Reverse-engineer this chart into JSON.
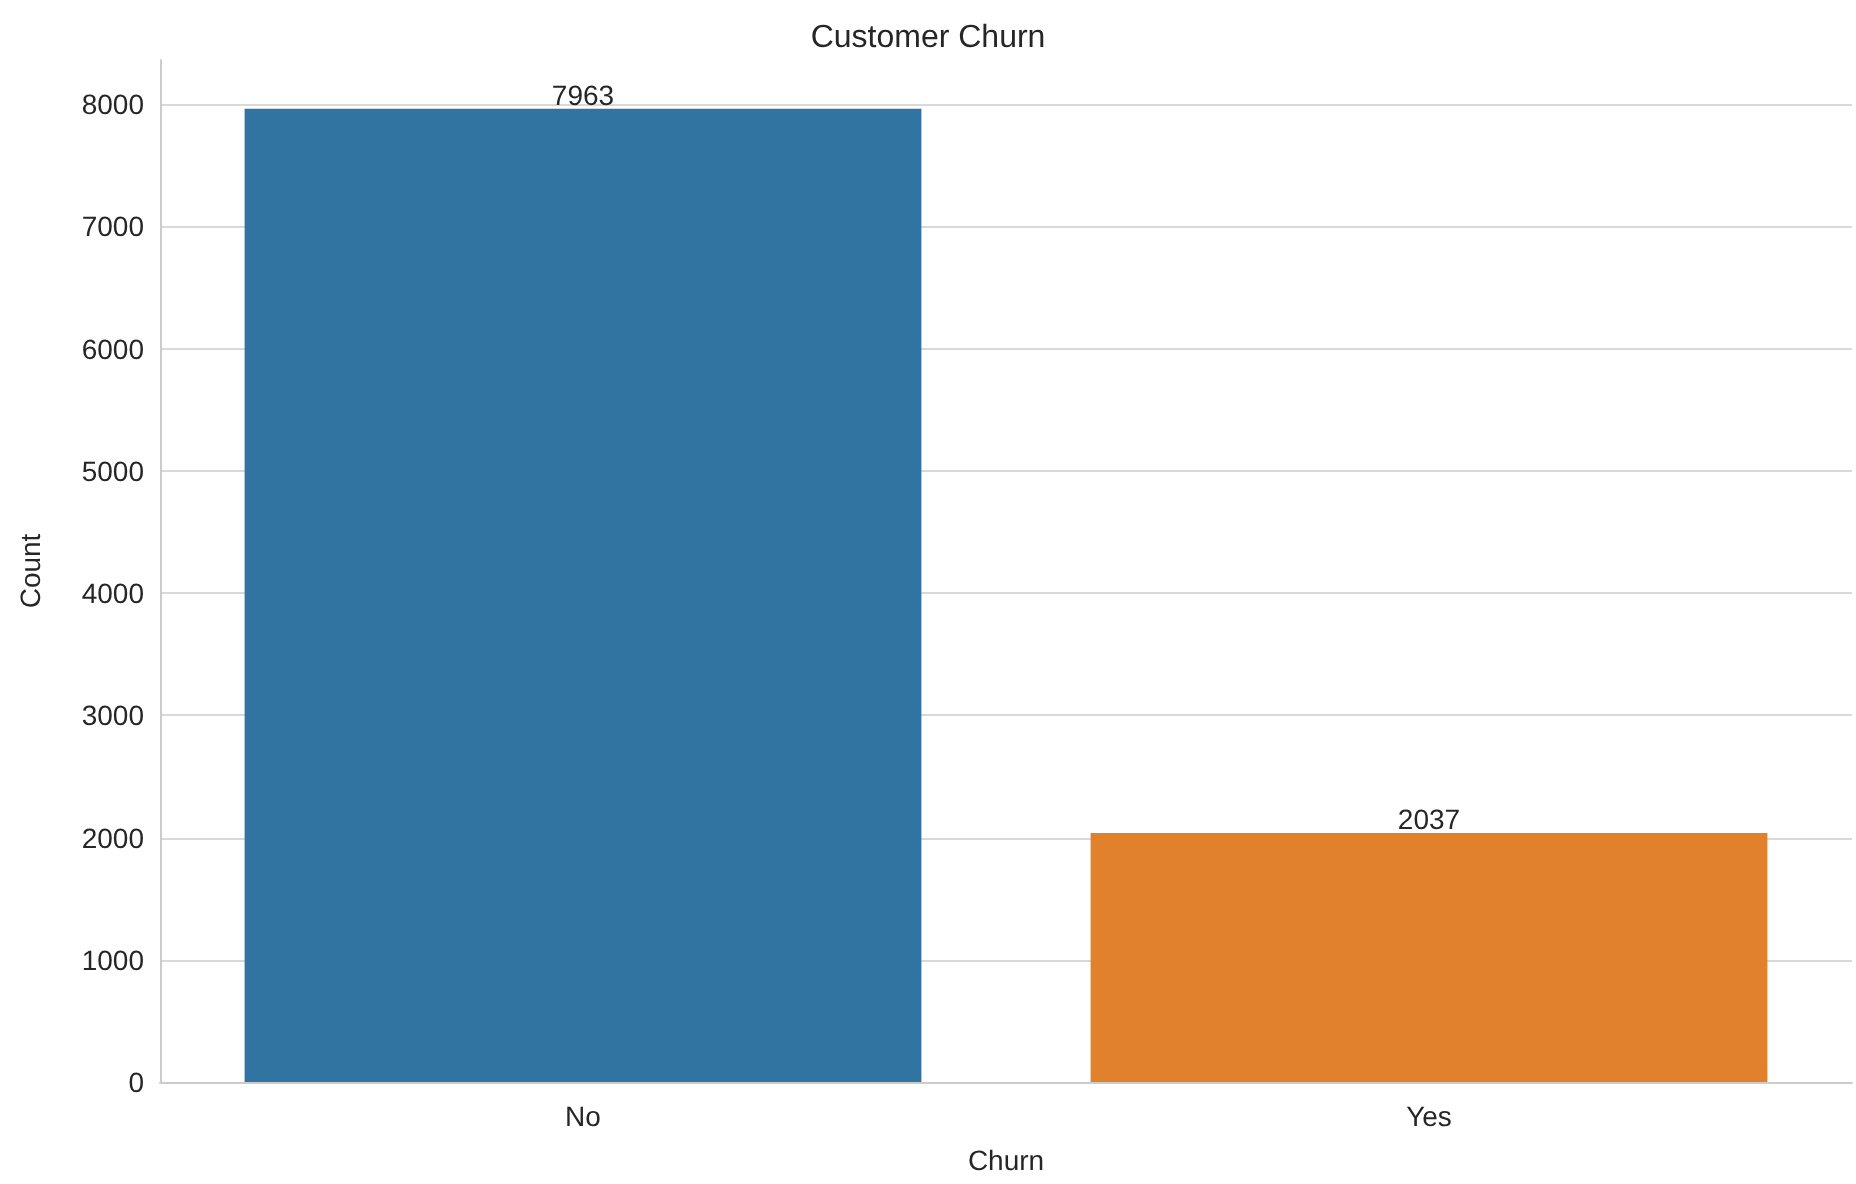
{
  "chart_data": {
    "type": "bar",
    "title": "Customer Churn",
    "xlabel": "Churn",
    "ylabel": "Count",
    "categories": [
      "No",
      "Yes"
    ],
    "values": [
      7963,
      2037
    ],
    "colors": [
      "#3274a1",
      "#e1812c"
    ],
    "ylim": [
      0,
      8361
    ],
    "yticks": [
      0,
      1000,
      2000,
      3000,
      4000,
      5000,
      6000,
      7000,
      8000
    ],
    "grid": "y",
    "data_labels": true
  }
}
